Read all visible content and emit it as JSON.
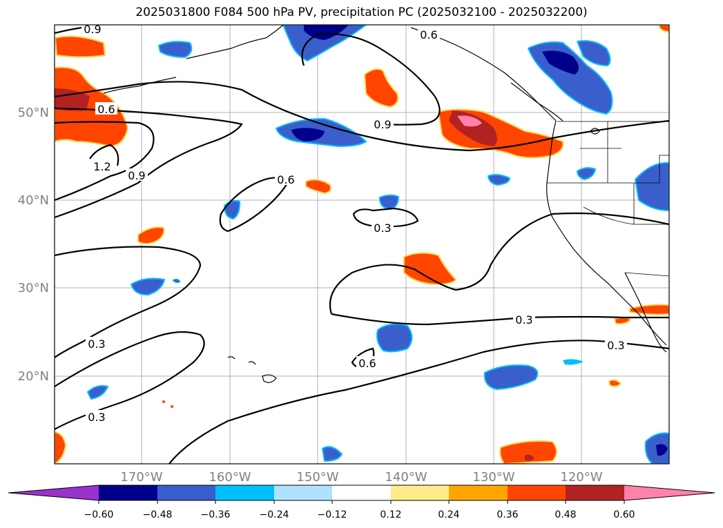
{
  "title": "2025031800 F084 500 hPa PV, precipitation PC (2025032100 - 2025032200)",
  "map": {
    "lat_labels": [
      "50°N",
      "40°N",
      "30°N",
      "20°N"
    ],
    "lon_labels": [
      "170°W",
      "160°W",
      "150°W",
      "140°W",
      "130°W",
      "120°W"
    ],
    "label_color": "#808080",
    "gridline_color": "#b0b0b0"
  },
  "contour_labels": [
    "0.9",
    "0.6",
    "0.6",
    "1.2",
    "0.9",
    "0.9",
    "0.6",
    "0.3",
    "0.3",
    "0.3",
    "0.3",
    "0.6",
    "0.3"
  ],
  "colorbar": {
    "colors": [
      "#9933cc",
      "#00008b",
      "#3a5fcd",
      "#00bfff",
      "#b0e2ff",
      "#ffffff",
      "#ffec8b",
      "#ffa500",
      "#ff4500",
      "#b22222",
      "#ff82ab"
    ],
    "tick_labels": [
      "−0.60",
      "−0.48",
      "−0.36",
      "−0.24",
      "−0.12",
      "0.12",
      "0.24",
      "0.36",
      "0.48",
      "0.60"
    ]
  }
}
